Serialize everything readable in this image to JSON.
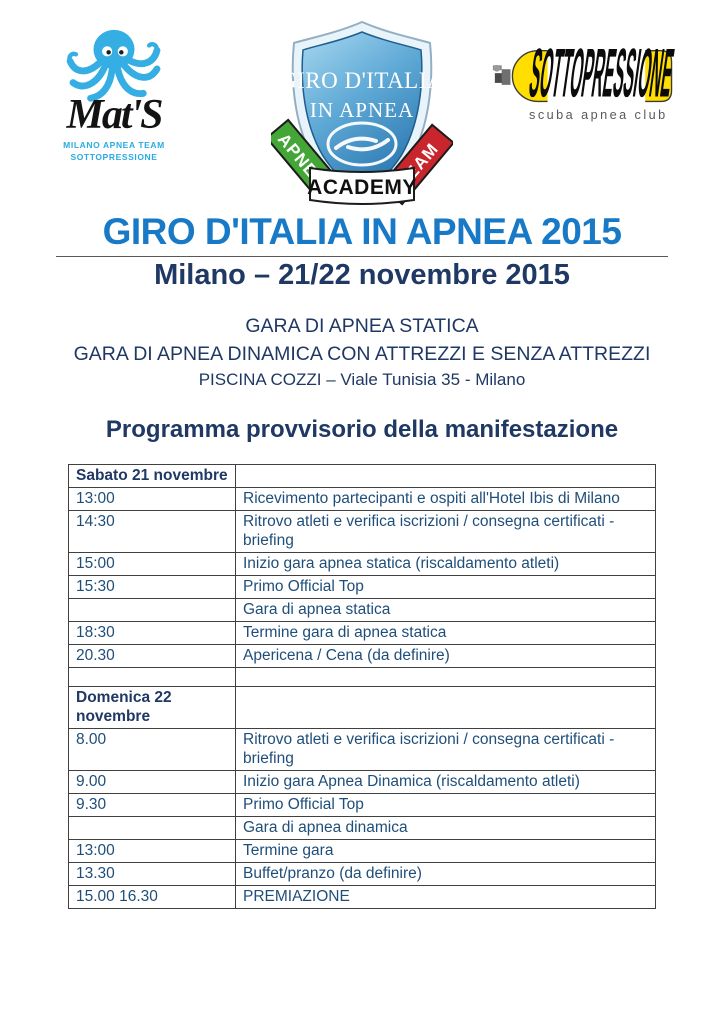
{
  "logos": {
    "mats": {
      "script_name": "Mat'S",
      "caption_line1": "MILANO APNEA TEAM",
      "caption_line2": "SOTTOPRESSIONE",
      "brand_color": "#29ABE2"
    },
    "shield": {
      "line1": "GIRO D'ITALIA",
      "line2": "IN APNEA",
      "ribbon_left": "APNEA",
      "ribbon_center": "ACADEMY",
      "ribbon_right": "TEAM",
      "ribbon_left_color": "#44A636",
      "ribbon_right_color": "#C9252C",
      "shield_color": "#4E9ECB"
    },
    "sotto": {
      "tank_text": "SOTTOPRESSIONE",
      "caption": "scuba apnea club",
      "tank_color": "#FFDE00"
    }
  },
  "header": {
    "title": "GIRO D'ITALIA IN APNEA 2015",
    "subtitle": "Milano – 21/22 novembre 2015",
    "title_color": "#1879C6",
    "subtitle_color": "#1F3864"
  },
  "intro": {
    "line1": "GARA DI APNEA STATICA",
    "line2": "GARA DI APNEA DINAMICA CON ATTREZZI E SENZA ATTREZZI",
    "venue": "PISCINA COZZI – Viale Tunisia 35 - Milano"
  },
  "program": {
    "heading": "Programma provvisorio della manifestazione",
    "text_color": "#1F4E79",
    "rows": [
      {
        "time": "Sabato 21 novembre",
        "desc": "",
        "bold": true
      },
      {
        "time": "13:00",
        "desc": "Ricevimento partecipanti e ospiti all'Hotel Ibis di Milano"
      },
      {
        "time": "14:30",
        "desc": "Ritrovo atleti e verifica iscrizioni / consegna certificati - briefing"
      },
      {
        "time": "15:00",
        "desc": "Inizio gara apnea statica (riscaldamento atleti)"
      },
      {
        "time": "15:30",
        "desc": "Primo Official Top"
      },
      {
        "time": "",
        "desc": "Gara di apnea statica"
      },
      {
        "time": "18:30",
        "desc": "Termine gara di apnea statica"
      },
      {
        "time": "20.30",
        "desc": "Apericena / Cena  (da definire)"
      },
      {
        "time": "",
        "desc": "",
        "spacer": true
      },
      {
        "time": "Domenica 22 novembre",
        "desc": "",
        "bold": true
      },
      {
        "time": "8.00",
        "desc": "Ritrovo atleti e verifica iscrizioni / consegna certificati - briefing"
      },
      {
        "time": "9.00",
        "desc": "Inizio gara Apnea Dinamica (riscaldamento atleti)"
      },
      {
        "time": "9.30",
        "desc": "Primo Official Top"
      },
      {
        "time": "",
        "desc": "Gara di apnea dinamica"
      },
      {
        "time": "13:00",
        "desc": "Termine gara"
      },
      {
        "time": "13.30",
        "desc": "Buffet/pranzo (da definire)"
      },
      {
        "time": "15.00 16.30",
        "desc": "PREMIAZIONE"
      }
    ]
  }
}
